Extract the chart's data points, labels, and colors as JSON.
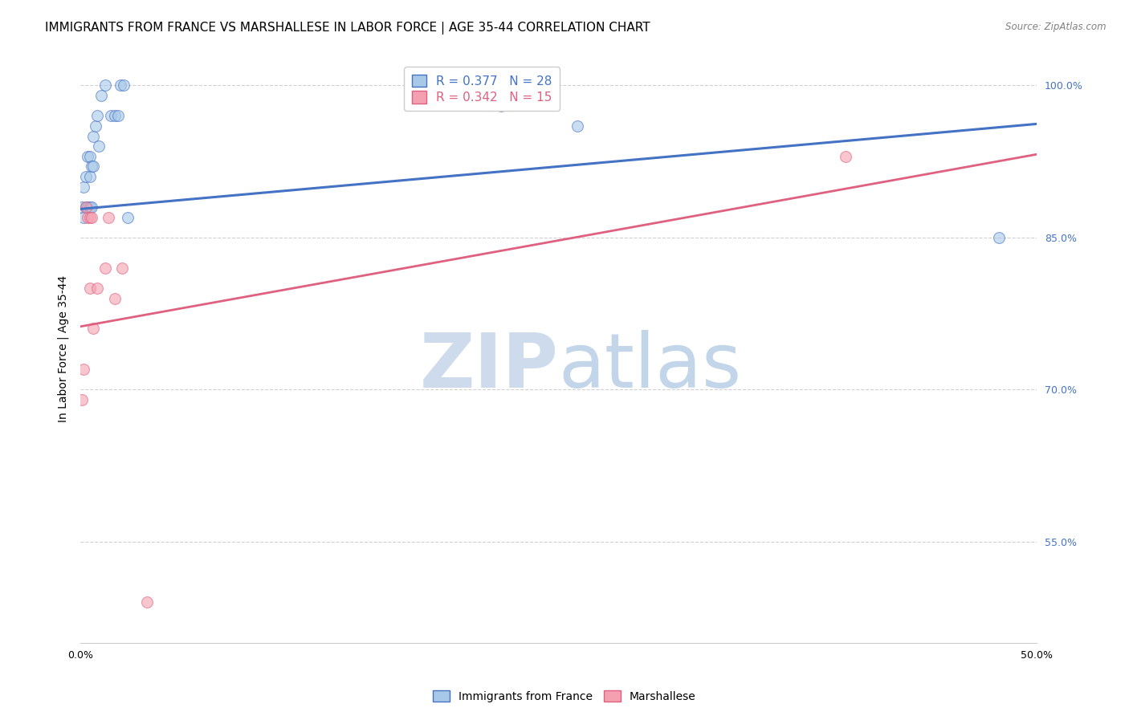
{
  "title": "IMMIGRANTS FROM FRANCE VS MARSHALLESE IN LABOR FORCE | AGE 35-44 CORRELATION CHART",
  "source": "Source: ZipAtlas.com",
  "ylabel": "In Labor Force | Age 35-44",
  "xlim": [
    0.0,
    0.5
  ],
  "ylim": [
    0.45,
    1.03
  ],
  "yticks": [
    0.55,
    0.7,
    0.85,
    1.0
  ],
  "ytick_labels": [
    "55.0%",
    "70.0%",
    "85.0%",
    "100.0%"
  ],
  "france_color": "#a8c8e8",
  "france_line_color": "#4472c4",
  "marshallese_color": "#f4a0b0",
  "marshallese_line_color": "#e06080",
  "france_x": [
    0.001,
    0.002,
    0.002,
    0.003,
    0.003,
    0.004,
    0.004,
    0.005,
    0.005,
    0.005,
    0.006,
    0.006,
    0.007,
    0.007,
    0.008,
    0.009,
    0.01,
    0.011,
    0.013,
    0.016,
    0.018,
    0.02,
    0.021,
    0.023,
    0.025,
    0.22,
    0.26,
    0.48
  ],
  "france_y": [
    0.88,
    0.87,
    0.9,
    0.88,
    0.91,
    0.88,
    0.93,
    0.88,
    0.91,
    0.93,
    0.88,
    0.92,
    0.92,
    0.95,
    0.96,
    0.97,
    0.94,
    0.99,
    1.0,
    0.97,
    0.97,
    0.97,
    1.0,
    1.0,
    0.87,
    0.98,
    0.96,
    0.85
  ],
  "marshallese_x": [
    0.001,
    0.002,
    0.003,
    0.004,
    0.005,
    0.005,
    0.006,
    0.007,
    0.009,
    0.013,
    0.015,
    0.018,
    0.022,
    0.035,
    0.4
  ],
  "marshallese_y": [
    0.69,
    0.72,
    0.88,
    0.87,
    0.87,
    0.8,
    0.87,
    0.76,
    0.8,
    0.82,
    0.87,
    0.79,
    0.82,
    0.49,
    0.93
  ],
  "legend_france_label": "R = 0.377   N = 28",
  "legend_marshallese_label": "R = 0.342   N = 15",
  "background_color": "#ffffff",
  "grid_color": "#d0d0d0",
  "title_fontsize": 11,
  "axis_fontsize": 10,
  "tick_fontsize": 9,
  "france_trendline_x": [
    0.0,
    0.5
  ],
  "france_trendline_y": [
    0.878,
    0.962
  ],
  "marshallese_trendline_x": [
    0.0,
    0.5
  ],
  "marshallese_trendline_y": [
    0.762,
    0.932
  ]
}
